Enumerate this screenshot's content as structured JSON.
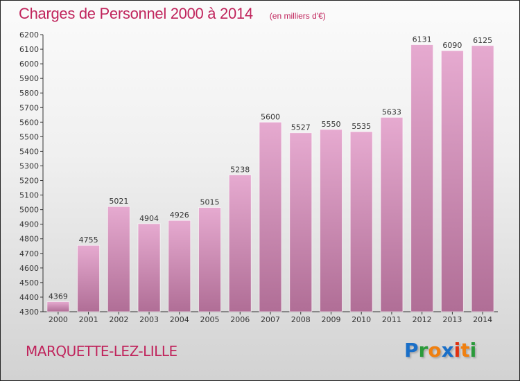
{
  "title": "Charges de Personnel 2000 à 2014",
  "subtitle": "(en milliers d'€)",
  "city": "MARQUETTE-LEZ-LILLE",
  "logo": {
    "letters": [
      "P",
      "r",
      "o",
      "x",
      "i",
      "t",
      "i"
    ],
    "colors": [
      "#1a6fc8",
      "#2a9a3a",
      "#f08010",
      "#1a6fc8",
      "#e03010",
      "#f08010",
      "#2a9a3a"
    ]
  },
  "colors": {
    "bar_top": "#e6aad0",
    "bar_bottom": "#b06e96"
  },
  "chart_data": {
    "type": "bar",
    "title": "Charges de Personnel 2000 à 2014",
    "categories": [
      "2000",
      "2001",
      "2002",
      "2003",
      "2004",
      "2005",
      "2006",
      "2007",
      "2008",
      "2009",
      "2010",
      "2011",
      "2012",
      "2013",
      "2014"
    ],
    "values": [
      4369,
      4755,
      5021,
      4904,
      4926,
      5015,
      5238,
      5600,
      5527,
      5550,
      5535,
      5633,
      6131,
      6090,
      6125
    ],
    "ylim": [
      4300,
      6200
    ],
    "yticks": [
      4300,
      4400,
      4500,
      4600,
      4700,
      4800,
      4900,
      5000,
      5100,
      5200,
      5300,
      5400,
      5500,
      5600,
      5700,
      5800,
      5900,
      6000,
      6100,
      6200
    ],
    "xlabel": "",
    "ylabel": "",
    "grid": false
  }
}
